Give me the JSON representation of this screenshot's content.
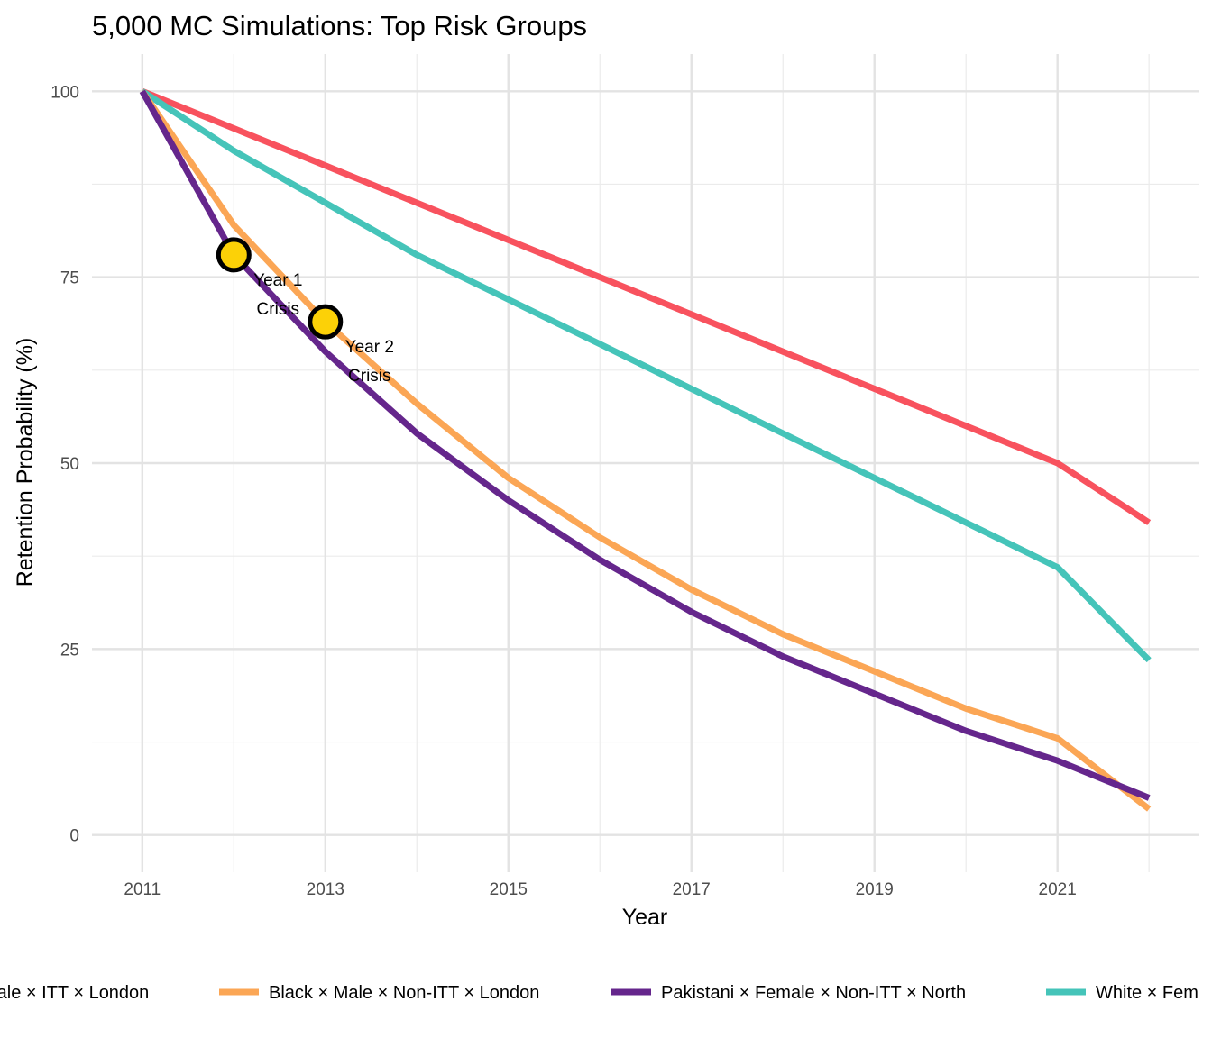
{
  "chart_data": {
    "type": "line",
    "title": "5,000 MC Simulations: Top Risk Groups",
    "xlabel": "Year",
    "ylabel": "Retention Probability (%)",
    "xlim": [
      2010.45,
      2022.55
    ],
    "ylim": [
      -5,
      105
    ],
    "x_ticks": [
      2011,
      2013,
      2015,
      2017,
      2019,
      2021
    ],
    "y_ticks": [
      0,
      25,
      50,
      75,
      100
    ],
    "grid": true,
    "legend_position": "bottom",
    "x": [
      2011,
      2012,
      2013,
      2014,
      2015,
      2016,
      2017,
      2018,
      2019,
      2020,
      2021,
      2022
    ],
    "series": [
      {
        "name": "Male × ITT × London",
        "legend_label": "Male × ITT × London",
        "color": "#F8525E",
        "values": [
          100,
          95,
          90,
          85,
          80,
          75,
          70,
          65,
          60,
          55,
          50,
          42
        ]
      },
      {
        "name": "Black × Male × Non-ITT × London",
        "legend_label": "Black × Male × Non-ITT × London",
        "color": "#FBA655",
        "values": [
          100,
          82,
          69,
          58,
          48,
          40,
          33,
          27,
          22,
          17,
          13,
          3.5
        ]
      },
      {
        "name": "Pakistani × Female × Non-ITT × North",
        "legend_label": "Pakistani × Female × Non-ITT × North",
        "color": "#65268C",
        "values": [
          100,
          78,
          65,
          54,
          45,
          37,
          30,
          24,
          19,
          14,
          10,
          5
        ]
      },
      {
        "name": "White × Fem",
        "legend_label": "White × Fem",
        "color": "#45C4B9",
        "values": [
          100,
          92,
          85,
          78,
          72,
          66,
          60,
          54,
          48,
          42,
          36,
          23.5
        ]
      }
    ],
    "annotations": [
      {
        "x": 2012,
        "y": 78,
        "line1": "Year 1",
        "line2": "Crisis",
        "marker_color": "#FCD107"
      },
      {
        "x": 2013,
        "y": 69,
        "line1": "Year 2",
        "line2": "Crisis",
        "marker_color": "#FCD107"
      }
    ]
  }
}
